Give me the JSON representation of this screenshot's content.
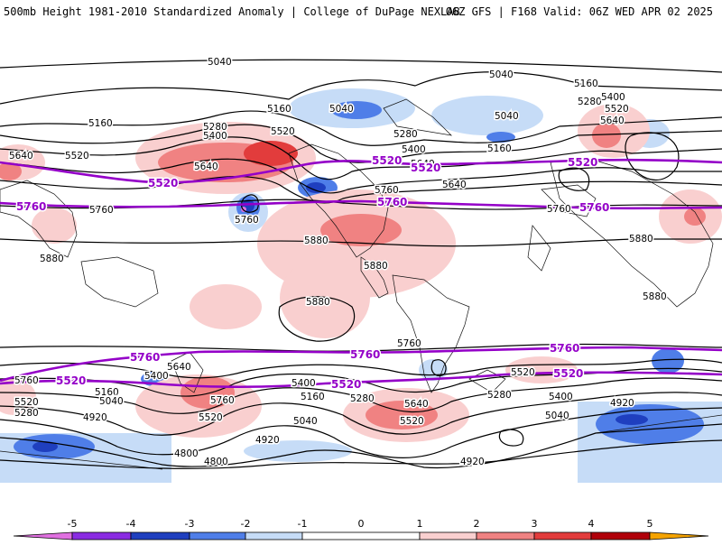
{
  "header": {
    "title": "500mb Height 1981-2010 Standardized Anomaly | College of DuPage NEXLAB",
    "run_info": "06Z GFS | F168 Valid: 06Z WED APR 02 2025"
  },
  "colors": {
    "neg5": "#e070e0",
    "neg4": "#8a2be2",
    "neg3": "#1f3fbf",
    "neg2": "#4f7ee8",
    "neg1": "#c6dcf7",
    "pos1": "#f9cfcf",
    "pos2": "#f08282",
    "pos3": "#e23c3c",
    "pos4": "#b0000a",
    "pos5": "#f5a300",
    "contour": "#000000",
    "highlight": "#9400c8"
  },
  "contour_labels": [
    {
      "text": "5040"
    },
    {
      "text": "5040"
    },
    {
      "text": "5040"
    },
    {
      "text": "5040"
    },
    {
      "text": "5040"
    },
    {
      "text": "5160"
    },
    {
      "text": "5160"
    },
    {
      "text": "5160"
    },
    {
      "text": "5160"
    },
    {
      "text": "5160"
    },
    {
      "text": "5160"
    },
    {
      "text": "5280"
    },
    {
      "text": "5280"
    },
    {
      "text": "5280"
    },
    {
      "text": "5280"
    },
    {
      "text": "5280"
    },
    {
      "text": "5280"
    },
    {
      "text": "5400"
    },
    {
      "text": "5400"
    },
    {
      "text": "5400"
    },
    {
      "text": "5400"
    },
    {
      "text": "5400"
    },
    {
      "text": "5400"
    },
    {
      "text": "5520"
    },
    {
      "text": "5520"
    },
    {
      "text": "5520"
    },
    {
      "text": "5520"
    },
    {
      "text": "5520"
    },
    {
      "text": "5520"
    },
    {
      "text": "5520"
    },
    {
      "text": "5640"
    },
    {
      "text": "5640"
    },
    {
      "text": "5640"
    },
    {
      "text": "5640"
    },
    {
      "text": "5640"
    },
    {
      "text": "5640"
    },
    {
      "text": "5640"
    },
    {
      "text": "5760"
    },
    {
      "text": "5760"
    },
    {
      "text": "5760"
    },
    {
      "text": "5760"
    },
    {
      "text": "5760"
    },
    {
      "text": "5760"
    },
    {
      "text": "5760"
    },
    {
      "text": "5880"
    },
    {
      "text": "5880"
    },
    {
      "text": "5880"
    },
    {
      "text": "5880"
    },
    {
      "text": "5880"
    },
    {
      "text": "5880"
    },
    {
      "text": "4920"
    },
    {
      "text": "4920"
    },
    {
      "text": "4920"
    },
    {
      "text": "4920"
    },
    {
      "text": "4800"
    },
    {
      "text": "4800"
    },
    {
      "text": "5040"
    },
    {
      "text": "5040"
    }
  ],
  "highlight_labels": [
    {
      "text": "5520"
    },
    {
      "text": "5520"
    },
    {
      "text": "5520"
    },
    {
      "text": "5520"
    },
    {
      "text": "5760"
    },
    {
      "text": "5760"
    },
    {
      "text": "5760"
    },
    {
      "text": "5760"
    },
    {
      "text": "5760"
    },
    {
      "text": "5760"
    },
    {
      "text": "5520"
    },
    {
      "text": "5520"
    },
    {
      "text": "5520"
    }
  ],
  "legend": {
    "ticks": [
      "-5",
      "-4",
      "-3",
      "-2",
      "-1",
      "0",
      "1",
      "2",
      "3",
      "4",
      "5"
    ]
  }
}
